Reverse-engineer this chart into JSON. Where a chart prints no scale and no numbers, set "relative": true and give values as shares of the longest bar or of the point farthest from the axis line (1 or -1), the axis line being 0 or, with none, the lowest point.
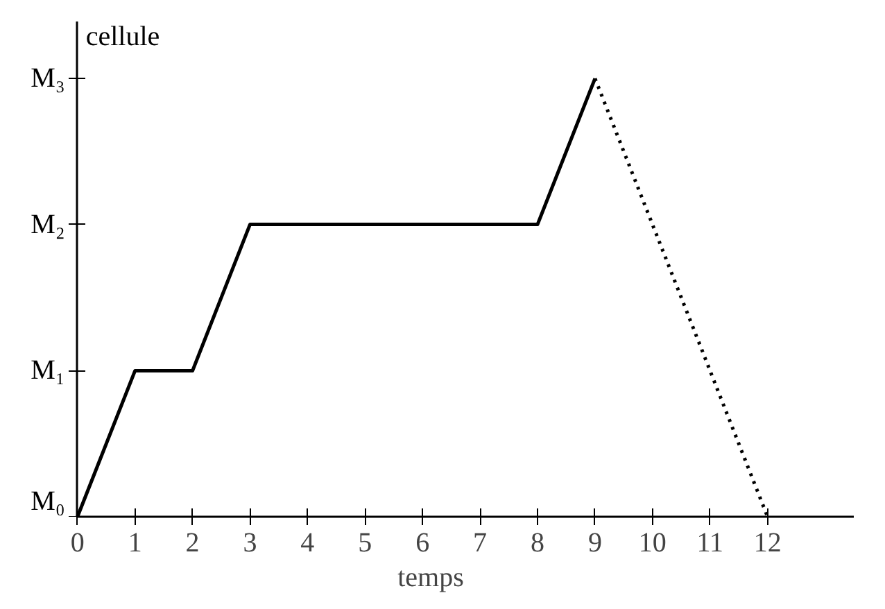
{
  "chart_data": {
    "type": "line",
    "relative": true,
    "xlabel": "temps",
    "ylabel": "cellule",
    "xlim": [
      0,
      13.5
    ],
    "xticks": [
      0,
      1,
      2,
      3,
      4,
      5,
      6,
      7,
      8,
      9,
      10,
      11,
      12
    ],
    "annotations": [
      "M₀",
      "M₁",
      "M₂",
      "M₃"
    ],
    "grid": false,
    "series": [
      {
        "color": "#000000",
        "line_style": "solid",
        "x": [
          0,
          1,
          2,
          3,
          8,
          9
        ],
        "values": [
          0,
          0.333,
          0.333,
          0.667,
          0.667,
          1
        ]
      },
      {
        "color": "#000000",
        "line_style": "dotted",
        "x": [
          9,
          12
        ],
        "values": [
          1,
          0
        ]
      }
    ]
  }
}
